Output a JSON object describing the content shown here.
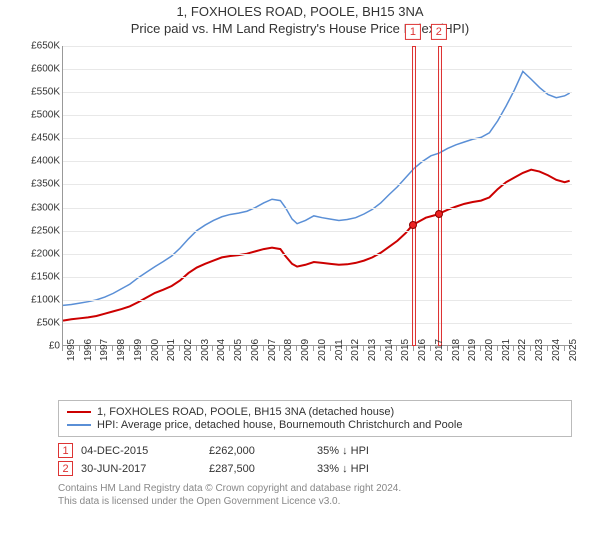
{
  "title_line1": "1, FOXHOLES ROAD, POOLE, BH15 3NA",
  "title_line2": "Price paid vs. HM Land Registry's House Price Index (HPI)",
  "chart": {
    "type": "line",
    "x_axis": {
      "min": 1995,
      "max": 2025.5,
      "labels_at": [
        1995,
        1996,
        1997,
        1998,
        1999,
        2000,
        2001,
        2002,
        2003,
        2004,
        2005,
        2006,
        2007,
        2008,
        2009,
        2010,
        2011,
        2012,
        2013,
        2014,
        2015,
        2016,
        2017,
        2018,
        2019,
        2020,
        2021,
        2022,
        2023,
        2024,
        2025
      ]
    },
    "y_axis": {
      "min": 0,
      "max": 650,
      "tick_step": 50,
      "unit_prefix": "£",
      "unit_suffix": "K"
    },
    "grid_color": "#e8e8e8",
    "axis_color": "#999999",
    "background": "#ffffff",
    "series": [
      {
        "id": "property",
        "label": "1, FOXHOLES ROAD, POOLE, BH15 3NA (detached house)",
        "color": "#cc0000",
        "width": 2,
        "points": [
          [
            1995,
            55
          ],
          [
            1995.5,
            58
          ],
          [
            1996,
            60
          ],
          [
            1996.5,
            62
          ],
          [
            1997,
            65
          ],
          [
            1997.5,
            70
          ],
          [
            1998,
            75
          ],
          [
            1998.5,
            80
          ],
          [
            1999,
            86
          ],
          [
            1999.5,
            95
          ],
          [
            2000,
            105
          ],
          [
            2000.5,
            115
          ],
          [
            2001,
            122
          ],
          [
            2001.5,
            130
          ],
          [
            2002,
            142
          ],
          [
            2002.5,
            158
          ],
          [
            2003,
            170
          ],
          [
            2003.5,
            178
          ],
          [
            2004,
            185
          ],
          [
            2004.5,
            192
          ],
          [
            2005,
            195
          ],
          [
            2005.5,
            197
          ],
          [
            2006,
            200
          ],
          [
            2006.5,
            205
          ],
          [
            2007,
            210
          ],
          [
            2007.5,
            213
          ],
          [
            2008,
            210
          ],
          [
            2008.3,
            195
          ],
          [
            2008.7,
            178
          ],
          [
            2009,
            172
          ],
          [
            2009.5,
            176
          ],
          [
            2010,
            182
          ],
          [
            2010.5,
            180
          ],
          [
            2011,
            178
          ],
          [
            2011.5,
            176
          ],
          [
            2012,
            177
          ],
          [
            2012.5,
            180
          ],
          [
            2013,
            185
          ],
          [
            2013.5,
            192
          ],
          [
            2014,
            202
          ],
          [
            2014.5,
            215
          ],
          [
            2015,
            228
          ],
          [
            2015.5,
            245
          ],
          [
            2015.9,
            262
          ],
          [
            2016.3,
            270
          ],
          [
            2016.7,
            278
          ],
          [
            2017.2,
            283
          ],
          [
            2017.5,
            287
          ],
          [
            2018,
            295
          ],
          [
            2018.5,
            302
          ],
          [
            2019,
            308
          ],
          [
            2019.5,
            312
          ],
          [
            2020,
            315
          ],
          [
            2020.5,
            322
          ],
          [
            2021,
            340
          ],
          [
            2021.5,
            355
          ],
          [
            2022,
            365
          ],
          [
            2022.5,
            375
          ],
          [
            2023,
            382
          ],
          [
            2023.5,
            378
          ],
          [
            2024,
            370
          ],
          [
            2024.5,
            360
          ],
          [
            2025,
            355
          ],
          [
            2025.3,
            358
          ]
        ]
      },
      {
        "id": "hpi",
        "label": "HPI: Average price, detached house, Bournemouth Christchurch and Poole",
        "color": "#5a8fd6",
        "width": 1.5,
        "points": [
          [
            1995,
            88
          ],
          [
            1995.5,
            90
          ],
          [
            1996,
            93
          ],
          [
            1996.5,
            96
          ],
          [
            1997,
            100
          ],
          [
            1997.5,
            106
          ],
          [
            1998,
            114
          ],
          [
            1998.5,
            124
          ],
          [
            1999,
            134
          ],
          [
            1999.5,
            148
          ],
          [
            2000,
            160
          ],
          [
            2000.5,
            172
          ],
          [
            2001,
            183
          ],
          [
            2001.5,
            195
          ],
          [
            2002,
            212
          ],
          [
            2002.5,
            232
          ],
          [
            2003,
            250
          ],
          [
            2003.5,
            262
          ],
          [
            2004,
            272
          ],
          [
            2004.5,
            280
          ],
          [
            2005,
            285
          ],
          [
            2005.5,
            288
          ],
          [
            2006,
            292
          ],
          [
            2006.5,
            300
          ],
          [
            2007,
            310
          ],
          [
            2007.5,
            318
          ],
          [
            2008,
            315
          ],
          [
            2008.3,
            300
          ],
          [
            2008.7,
            275
          ],
          [
            2009,
            265
          ],
          [
            2009.5,
            272
          ],
          [
            2010,
            282
          ],
          [
            2010.5,
            278
          ],
          [
            2011,
            275
          ],
          [
            2011.5,
            272
          ],
          [
            2012,
            274
          ],
          [
            2012.5,
            278
          ],
          [
            2013,
            286
          ],
          [
            2013.5,
            296
          ],
          [
            2014,
            310
          ],
          [
            2014.5,
            328
          ],
          [
            2015,
            345
          ],
          [
            2015.5,
            365
          ],
          [
            2016,
            385
          ],
          [
            2016.5,
            400
          ],
          [
            2017,
            412
          ],
          [
            2017.5,
            418
          ],
          [
            2018,
            428
          ],
          [
            2018.5,
            436
          ],
          [
            2019,
            442
          ],
          [
            2019.5,
            448
          ],
          [
            2020,
            452
          ],
          [
            2020.5,
            462
          ],
          [
            2021,
            488
          ],
          [
            2021.5,
            520
          ],
          [
            2022,
            555
          ],
          [
            2022.5,
            595
          ],
          [
            2023,
            578
          ],
          [
            2023.5,
            560
          ],
          [
            2024,
            545
          ],
          [
            2024.5,
            538
          ],
          [
            2025,
            542
          ],
          [
            2025.3,
            548
          ]
        ]
      }
    ],
    "markers": [
      {
        "num": "1",
        "x_start": 2015.85,
        "x_end": 2016.0,
        "dot_x": 2015.93,
        "dot_y": 262
      },
      {
        "num": "2",
        "x_start": 2017.4,
        "x_end": 2017.55,
        "dot_x": 2017.48,
        "dot_y": 287
      }
    ]
  },
  "legend": {
    "items": [
      {
        "color": "#cc0000",
        "label_ref": "chart.series.0.label"
      },
      {
        "color": "#5a8fd6",
        "label_ref": "chart.series.1.label"
      }
    ]
  },
  "transactions": [
    {
      "num": "1",
      "date": "04-DEC-2015",
      "price": "£262,000",
      "diff": "35% ↓ HPI"
    },
    {
      "num": "2",
      "date": "30-JUN-2017",
      "price": "£287,500",
      "diff": "33% ↓ HPI"
    }
  ],
  "footer_line1": "Contains HM Land Registry data © Crown copyright and database right 2024.",
  "footer_line2": "This data is licensed under the Open Government Licence v3.0."
}
